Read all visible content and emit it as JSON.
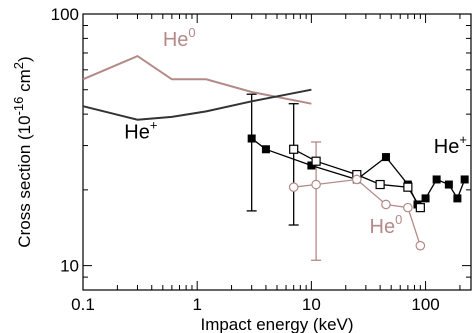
{
  "chart_data": {
    "type": "line",
    "xlabel": "Impact energy (keV)",
    "ylabel_main": "Cross section (10",
    "ylabel_exp": "-16",
    "ylabel_unit": " cm",
    "ylabel_unit_exp": "2",
    "ylabel_close": ")",
    "x_scale": "log",
    "y_scale": "log",
    "xlim": [
      0.1,
      250
    ],
    "ylim": [
      8,
      100
    ],
    "x_ticks": [
      {
        "value": 0.1,
        "label": "0.1"
      },
      {
        "value": 1,
        "label": "1"
      },
      {
        "value": 10,
        "label": "10"
      },
      {
        "value": 100,
        "label": "100"
      }
    ],
    "y_ticks": [
      {
        "value": 10,
        "label": "10"
      },
      {
        "value": 100,
        "label": "100"
      }
    ],
    "annotations": [
      {
        "id": "he0-top",
        "base": "He",
        "sup": "0",
        "color": "#b48a88"
      },
      {
        "id": "heplus-left",
        "base": "He",
        "sup": "+",
        "color": "#000000"
      },
      {
        "id": "heplus-right",
        "base": "He",
        "sup": "+",
        "color": "#000000"
      },
      {
        "id": "he0-bottom",
        "base": "He",
        "sup": "0",
        "color": "#b48a88"
      }
    ],
    "series": [
      {
        "id": "theory-he0",
        "color": "#b48a88",
        "marker": "none",
        "x": [
          0.1,
          0.3,
          0.6,
          1.2,
          3,
          10
        ],
        "y": [
          55,
          68,
          55,
          55,
          49,
          44
        ]
      },
      {
        "id": "theory-heplus",
        "color": "#333333",
        "marker": "none",
        "x": [
          0.1,
          0.3,
          0.6,
          1.2,
          3,
          10
        ],
        "y": [
          43,
          38,
          39,
          41,
          45,
          50
        ]
      },
      {
        "id": "exp-heplus-filled",
        "color": "#000000",
        "marker": "filled-square",
        "x": [
          3,
          4,
          10,
          25,
          45,
          70,
          85,
          100,
          125,
          160,
          190,
          220
        ],
        "y": [
          32,
          29,
          25,
          22,
          27,
          21,
          17.5,
          18.5,
          22,
          21,
          18.5,
          22
        ]
      },
      {
        "id": "exp-heplus-open",
        "color": "#000000",
        "marker": "open-square",
        "x": [
          7,
          11,
          25,
          40,
          70,
          90
        ],
        "y": [
          29,
          26,
          23,
          21,
          20.5,
          17
        ]
      },
      {
        "id": "exp-he0-open",
        "color": "#b48a88",
        "marker": "open-circle",
        "x": [
          7,
          11,
          25,
          45,
          70,
          90
        ],
        "y": [
          20.5,
          21,
          22,
          17.5,
          17,
          12
        ]
      }
    ],
    "error_bars": [
      {
        "series": "exp-heplus-filled",
        "x": 3,
        "low": 16.5,
        "high": 48,
        "color": "#000000"
      },
      {
        "series": "exp-heplus-open",
        "x": 7,
        "low": 14.5,
        "high": 44,
        "color": "#000000"
      },
      {
        "series": "exp-he0-open",
        "x": 11,
        "low": 10.5,
        "high": 31,
        "color": "#b48a88"
      }
    ]
  }
}
